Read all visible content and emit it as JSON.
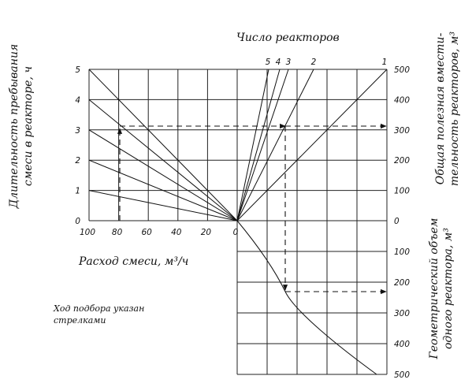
{
  "labels": {
    "reactor_count_title": "Число реакторов",
    "residence_time_line1": "Длительность пребывания",
    "residence_time_line2": "смеси в реакторе, ч",
    "flow_rate": "Расход смеси, м³/ч",
    "total_volume_line1": "Общая полезная вмести-",
    "total_volume_line2": "тельность реакторов, м³",
    "geom_volume_line1": "Геометрический объем",
    "geom_volume_line2": "одного реактора, м³",
    "note_line1": "Ход подбора указан",
    "note_line2": "стрелками"
  },
  "axes": {
    "left_ticks": [
      "0",
      "1",
      "2",
      "3",
      "4",
      "5"
    ],
    "bottom_ticks": [
      "100",
      "80",
      "60",
      "40",
      "20",
      "0"
    ],
    "right_upper_ticks": [
      "0",
      "100",
      "200",
      "300",
      "400",
      "500"
    ],
    "right_lower_ticks": [
      "100",
      "200",
      "300",
      "400",
      "500"
    ],
    "reactor_count_ticks": [
      "5",
      "4",
      "3",
      "2",
      "1"
    ]
  },
  "chart_data": {
    "type": "nomogram",
    "quadrants": [
      {
        "name": "residence-time-vs-flow",
        "x_axis": "flow rate, m3/h",
        "x_range": [
          100,
          0
        ],
        "y_axis": "residence time, h",
        "y_range": [
          0,
          5
        ],
        "rays_from_origin_at_100": [
          1,
          2,
          3,
          4,
          5
        ]
      },
      {
        "name": "total-volume-vs-reactor-count",
        "y_range": [
          0,
          500
        ],
        "reactor_lines": [
          1,
          2,
          3,
          4,
          5
        ]
      },
      {
        "name": "geometric-volume-curve",
        "y_range": [
          0,
          500
        ]
      }
    ],
    "example_path": {
      "flow_rate": 78,
      "total_volume": 310,
      "geometric_volume": 225
    }
  }
}
